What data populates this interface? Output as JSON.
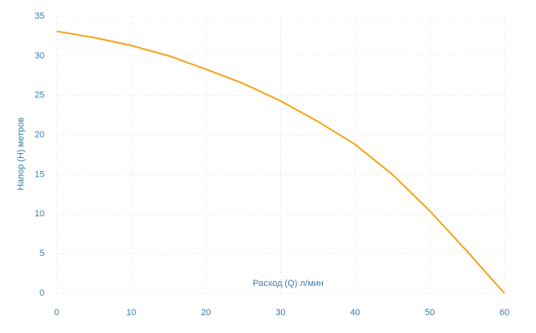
{
  "chart_data": {
    "type": "line",
    "x_label": "Расход (Q) л/мин",
    "y_label": "Напор (H) метров",
    "x": [
      0,
      5,
      10,
      15,
      20,
      25,
      30,
      35,
      40,
      45,
      50,
      55,
      60
    ],
    "series": [
      {
        "color": "#f7a21b",
        "values": [
          33.1,
          32.3,
          31.3,
          30.0,
          28.3,
          26.5,
          24.3,
          21.7,
          18.8,
          15.0,
          10.4,
          5.3,
          0
        ]
      }
    ],
    "xlim": [
      0,
      60
    ],
    "xticks": [
      0,
      10,
      20,
      30,
      40,
      50,
      60
    ],
    "ylim": [
      0,
      35
    ],
    "yticks": [
      0,
      5,
      10,
      15,
      20,
      25,
      30,
      35
    ],
    "grid": true
  }
}
